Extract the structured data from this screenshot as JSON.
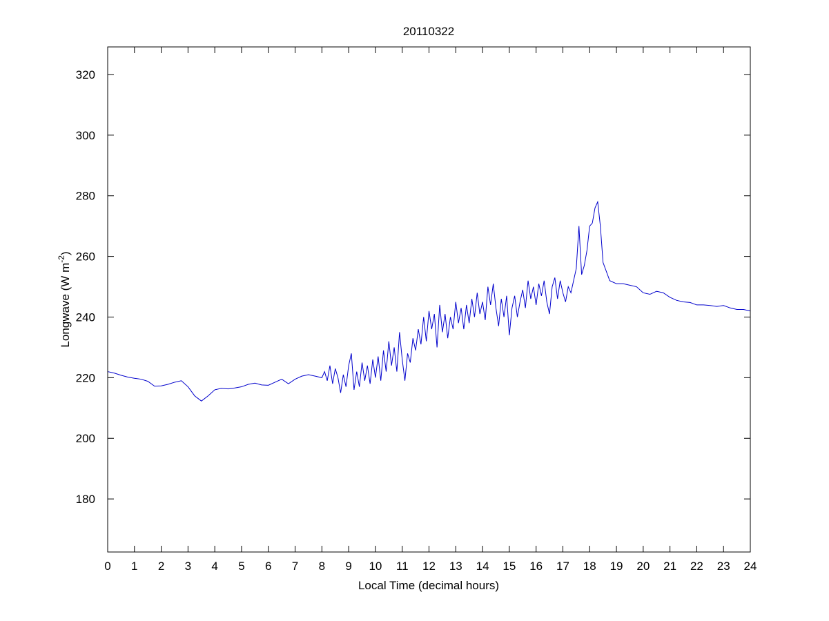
{
  "chart_data": {
    "type": "line",
    "title": "20110322",
    "xlabel": "Local Time (decimal hours)",
    "ylabel": {
      "text": "Longwave (W m",
      "superscript": "-2",
      "close": ")"
    },
    "xlim": [
      0,
      24
    ],
    "ylim": [
      162.5,
      329.1
    ],
    "xticks": [
      0,
      1,
      2,
      3,
      4,
      5,
      6,
      7,
      8,
      9,
      10,
      11,
      12,
      13,
      14,
      15,
      16,
      17,
      18,
      19,
      20,
      21,
      22,
      23,
      24
    ],
    "yticks": [
      180,
      200,
      220,
      240,
      260,
      280,
      300,
      320
    ],
    "x": [
      0,
      0.25,
      0.5,
      0.75,
      1,
      1.25,
      1.5,
      1.75,
      2,
      2.25,
      2.5,
      2.75,
      3,
      3.25,
      3.5,
      3.75,
      4,
      4.25,
      4.5,
      4.75,
      5,
      5.25,
      5.5,
      5.75,
      6,
      6.25,
      6.5,
      6.75,
      7,
      7.25,
      7.5,
      7.75,
      8,
      8.1,
      8.2,
      8.3,
      8.4,
      8.5,
      8.6,
      8.7,
      8.8,
      8.9,
      9,
      9.1,
      9.2,
      9.3,
      9.4,
      9.5,
      9.6,
      9.7,
      9.8,
      9.9,
      10,
      10.1,
      10.2,
      10.3,
      10.4,
      10.5,
      10.6,
      10.7,
      10.8,
      10.9,
      11,
      11.1,
      11.2,
      11.3,
      11.4,
      11.5,
      11.6,
      11.7,
      11.8,
      11.9,
      12,
      12.1,
      12.2,
      12.3,
      12.4,
      12.5,
      12.6,
      12.7,
      12.8,
      12.9,
      13,
      13.1,
      13.2,
      13.3,
      13.4,
      13.5,
      13.6,
      13.7,
      13.8,
      13.9,
      14,
      14.1,
      14.2,
      14.3,
      14.4,
      14.5,
      14.6,
      14.7,
      14.8,
      14.9,
      15,
      15.1,
      15.2,
      15.3,
      15.4,
      15.5,
      15.6,
      15.7,
      15.8,
      15.9,
      16,
      16.1,
      16.2,
      16.3,
      16.4,
      16.5,
      16.6,
      16.7,
      16.8,
      16.9,
      17,
      17.1,
      17.2,
      17.3,
      17.4,
      17.5,
      17.6,
      17.7,
      17.8,
      17.9,
      18,
      18.1,
      18.2,
      18.3,
      18.4,
      18.5,
      18.75,
      19,
      19.25,
      19.5,
      19.75,
      20,
      20.25,
      20.5,
      20.75,
      21,
      21.25,
      21.5,
      21.75,
      22,
      22.25,
      22.5,
      22.75,
      23,
      23.25,
      23.5,
      23.75,
      24
    ],
    "series": [
      {
        "color": "#0000cc",
        "values": [
          222,
          221.5,
          220.8,
          220.2,
          219.8,
          219.5,
          218.8,
          217.2,
          217.3,
          217.8,
          218.5,
          219,
          217,
          214,
          212.3,
          214,
          216,
          216.5,
          216.3,
          216.6,
          217,
          217.8,
          218.2,
          217.6,
          217.5,
          218.5,
          219.5,
          218,
          219.5,
          220.5,
          221,
          220.5,
          220,
          222,
          219,
          224,
          218,
          223,
          220,
          215,
          221,
          217,
          224,
          228,
          216,
          222,
          217,
          225,
          219,
          224,
          218,
          226,
          220,
          227,
          219,
          229,
          222,
          232,
          224,
          230,
          222,
          235,
          226,
          219,
          228,
          225,
          233,
          229,
          236,
          231,
          240,
          232,
          242,
          236,
          241,
          230,
          244,
          235,
          241,
          233,
          240,
          236,
          245,
          238,
          243,
          236,
          244,
          238,
          246,
          240,
          248,
          241,
          245,
          239,
          250,
          244,
          251,
          243,
          237,
          246,
          240,
          247,
          234,
          243,
          247,
          240,
          245,
          249,
          243,
          252,
          246,
          250,
          244,
          251,
          247,
          252,
          245,
          241,
          250,
          253,
          246,
          252,
          248,
          245,
          250,
          248,
          252,
          256,
          270,
          254,
          257,
          262,
          270,
          271,
          276,
          278,
          270,
          258,
          252,
          251,
          251,
          250.5,
          250,
          248,
          247.5,
          248.5,
          248,
          246.5,
          245.5,
          245,
          244.8,
          244,
          244,
          243.8,
          243.5,
          243.8,
          243,
          242.5,
          242.5,
          242
        ]
      }
    ]
  }
}
